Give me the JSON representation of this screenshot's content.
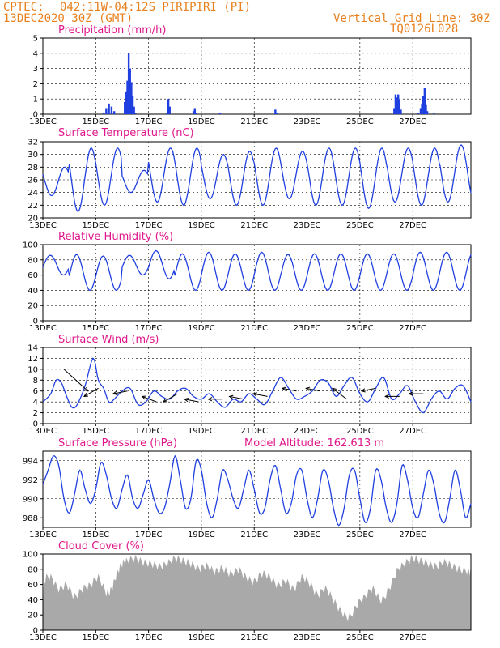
{
  "header": {
    "source": "CPTEC:",
    "location": "042:11W-04:12S  PIRIPIRI (PI)",
    "datetime": "13DEC2020 30Z (GMT)",
    "grid_note": "Vertical Grid Line: 30Z",
    "code": "TQ0126L028"
  },
  "colors": {
    "header": "#e8801e",
    "title": "#e0178a",
    "series": "#1f3fe0",
    "cloud": "#a9a9a9"
  },
  "chart_data": [
    {
      "id": "precip",
      "type": "bar",
      "title": "Precipitation (mm/h)",
      "xlabel": "",
      "ylabel": "",
      "ylim": [
        0,
        5
      ],
      "yticks": [
        0,
        1,
        2,
        3,
        4,
        5
      ],
      "grid": true,
      "x_ticks": [
        "13DEC",
        "15DEC",
        "17DEC",
        "19DEC",
        "21DEC",
        "23DEC",
        "25DEC",
        "27DEC"
      ],
      "points": [
        [
          2.3,
          0.1
        ],
        [
          2.4,
          0.4
        ],
        [
          2.5,
          0.7
        ],
        [
          2.6,
          0.5
        ],
        [
          2.7,
          0.2
        ],
        [
          3.1,
          0.8
        ],
        [
          3.15,
          1.5
        ],
        [
          3.2,
          2.2
        ],
        [
          3.25,
          4.0
        ],
        [
          3.3,
          3.0
        ],
        [
          3.35,
          2.1
        ],
        [
          3.4,
          1.2
        ],
        [
          3.45,
          0.5
        ],
        [
          3.5,
          0.1
        ],
        [
          4.7,
          0.1
        ],
        [
          4.75,
          1.0
        ],
        [
          4.8,
          0.5
        ],
        [
          5.7,
          0.2
        ],
        [
          5.75,
          0.4
        ],
        [
          5.8,
          0.1
        ],
        [
          6.7,
          0.1
        ],
        [
          8.8,
          0.3
        ],
        [
          8.85,
          0.1
        ],
        [
          13.3,
          0.4
        ],
        [
          13.35,
          1.3
        ],
        [
          13.4,
          1.1
        ],
        [
          13.45,
          1.3
        ],
        [
          13.5,
          0.9
        ],
        [
          13.55,
          0.3
        ],
        [
          14.2,
          0.1
        ],
        [
          14.3,
          0.4
        ],
        [
          14.35,
          0.7
        ],
        [
          14.4,
          1.2
        ],
        [
          14.45,
          1.7
        ],
        [
          14.5,
          0.6
        ],
        [
          14.55,
          0.2
        ],
        [
          14.8,
          0.1
        ]
      ]
    },
    {
      "id": "temp",
      "type": "line",
      "title": "Surface Temperature (nC)",
      "xlabel": "",
      "ylabel": "",
      "ylim": [
        20,
        32
      ],
      "yticks": [
        20,
        22,
        24,
        26,
        28,
        30,
        32
      ],
      "grid": true,
      "x_ticks": [
        "13DEC",
        "15DEC",
        "17DEC",
        "19DEC",
        "21DEC",
        "23DEC",
        "25DEC",
        "27DEC"
      ],
      "min_phase": 0.33,
      "daily": [
        [
          23.5,
          28.0
        ],
        [
          21.0,
          31.0
        ],
        [
          22.0,
          31.0
        ],
        [
          24.0,
          27.5
        ],
        [
          22.5,
          31.0
        ],
        [
          22.0,
          31.0
        ],
        [
          23.0,
          30.0
        ],
        [
          22.0,
          30.5
        ],
        [
          22.0,
          31.0
        ],
        [
          23.0,
          30.5
        ],
        [
          22.0,
          31.0
        ],
        [
          22.0,
          31.0
        ],
        [
          21.5,
          31.0
        ],
        [
          22.5,
          31.0
        ],
        [
          22.0,
          31.0
        ],
        [
          22.5,
          31.5
        ]
      ]
    },
    {
      "id": "rh",
      "type": "line",
      "title": "Relative Humidity (%)",
      "xlabel": "",
      "ylabel": "",
      "ylim": [
        0,
        100
      ],
      "yticks": [
        0,
        20,
        40,
        60,
        80,
        100
      ],
      "grid": true,
      "x_ticks": [
        "13DEC",
        "15DEC",
        "17DEC",
        "19DEC",
        "21DEC",
        "23DEC",
        "25DEC",
        "27DEC"
      ],
      "min_phase": 0.78,
      "daily": [
        [
          60.0,
          86.0
        ],
        [
          40.0,
          87.0
        ],
        [
          40.0,
          85.0
        ],
        [
          60.0,
          86.0
        ],
        [
          55.0,
          92.0
        ],
        [
          40.0,
          88.0
        ],
        [
          40.0,
          90.0
        ],
        [
          40.0,
          88.0
        ],
        [
          40.0,
          90.0
        ],
        [
          40.0,
          87.0
        ],
        [
          40.0,
          88.0
        ],
        [
          40.0,
          88.0
        ],
        [
          40.0,
          88.0
        ],
        [
          40.0,
          88.0
        ],
        [
          40.0,
          90.0
        ],
        [
          40.0,
          90.0
        ]
      ]
    },
    {
      "id": "wind",
      "type": "line",
      "title": "Surface Wind (m/s)",
      "xlabel": "",
      "ylabel": "",
      "ylim": [
        0,
        14
      ],
      "yticks": [
        0,
        2,
        4,
        6,
        8,
        10,
        12,
        14
      ],
      "grid": true,
      "x_ticks": [
        "13DEC",
        "15DEC",
        "17DEC",
        "19DEC",
        "21DEC",
        "23DEC",
        "25DEC",
        "27DEC"
      ],
      "speed": [
        [
          0,
          4.0
        ],
        [
          0.3,
          5.5
        ],
        [
          0.5,
          8.0
        ],
        [
          0.7,
          7.5
        ],
        [
          0.9,
          5.0
        ],
        [
          1.1,
          3.0
        ],
        [
          1.3,
          3.5
        ],
        [
          1.6,
          7.0
        ],
        [
          1.9,
          12.0
        ],
        [
          2.1,
          8.0
        ],
        [
          2.3,
          6.5
        ],
        [
          2.5,
          4.0
        ],
        [
          2.7,
          4.5
        ],
        [
          3.0,
          6.0
        ],
        [
          3.3,
          6.5
        ],
        [
          3.6,
          3.5
        ],
        [
          3.9,
          4.0
        ],
        [
          4.2,
          6.0
        ],
        [
          4.5,
          5.0
        ],
        [
          4.8,
          4.5
        ],
        [
          5.1,
          6.0
        ],
        [
          5.4,
          6.5
        ],
        [
          5.7,
          5.0
        ],
        [
          6.0,
          4.5
        ],
        [
          6.3,
          5.5
        ],
        [
          6.6,
          4.0
        ],
        [
          6.9,
          3.0
        ],
        [
          7.2,
          4.5
        ],
        [
          7.5,
          4.0
        ],
        [
          7.8,
          5.5
        ],
        [
          8.1,
          4.5
        ],
        [
          8.4,
          3.5
        ],
        [
          8.7,
          6.0
        ],
        [
          9.0,
          8.5
        ],
        [
          9.3,
          6.5
        ],
        [
          9.6,
          4.5
        ],
        [
          9.9,
          5.0
        ],
        [
          10.2,
          6.0
        ],
        [
          10.5,
          8.0
        ],
        [
          10.8,
          7.5
        ],
        [
          11.1,
          5.0
        ],
        [
          11.4,
          7.0
        ],
        [
          11.7,
          8.5
        ],
        [
          12.0,
          5.5
        ],
        [
          12.3,
          4.0
        ],
        [
          12.6,
          6.5
        ],
        [
          12.9,
          8.5
        ],
        [
          13.2,
          4.5
        ],
        [
          13.5,
          5.5
        ],
        [
          13.8,
          7.0
        ],
        [
          14.1,
          4.0
        ],
        [
          14.4,
          2.0
        ],
        [
          14.7,
          4.5
        ],
        [
          15.0,
          6.0
        ],
        [
          15.3,
          4.5
        ],
        [
          15.6,
          6.5
        ],
        [
          15.9,
          7.0
        ],
        [
          16.2,
          4.0
        ]
      ],
      "arrows": [
        [
          0.8,
          10.0,
          6.0
        ],
        [
          2.1,
          6.5,
          5.0
        ],
        [
          3.2,
          6.0,
          5.5
        ],
        [
          4.3,
          4.0,
          5.0
        ],
        [
          5.1,
          5.5,
          4.0
        ],
        [
          5.9,
          4.0,
          4.5
        ],
        [
          6.8,
          4.5,
          4.5
        ],
        [
          7.6,
          4.5,
          5.0
        ],
        [
          8.5,
          5.0,
          5.5
        ],
        [
          9.6,
          6.0,
          6.5
        ],
        [
          10.5,
          6.0,
          6.5
        ],
        [
          11.5,
          4.5,
          6.5
        ],
        [
          12.6,
          6.5,
          6.0
        ],
        [
          13.5,
          5.0,
          5.0
        ],
        [
          14.4,
          5.5,
          5.5
        ]
      ]
    },
    {
      "id": "pres",
      "type": "line",
      "title": "Surface Pressure (hPa)",
      "annotation": "Model Altitude: 162.613  m",
      "xlabel": "",
      "ylabel": "",
      "ylim": [
        987,
        995
      ],
      "yticks": [
        988,
        990,
        992,
        994
      ],
      "grid": true,
      "x_ticks": [
        "13DEC",
        "15DEC",
        "17DEC",
        "19DEC",
        "21DEC",
        "23DEC",
        "25DEC",
        "27DEC"
      ],
      "pressure": [
        [
          0,
          991.5
        ],
        [
          0.2,
          993.0
        ],
        [
          0.4,
          994.5
        ],
        [
          0.6,
          993.5
        ],
        [
          0.8,
          990.0
        ],
        [
          1.0,
          988.5
        ],
        [
          1.2,
          990.5
        ],
        [
          1.4,
          993.0
        ],
        [
          1.6,
          991.0
        ],
        [
          1.8,
          989.5
        ],
        [
          2.0,
          991.0
        ],
        [
          2.2,
          993.8
        ],
        [
          2.4,
          992.5
        ],
        [
          2.6,
          990.0
        ],
        [
          2.8,
          989.0
        ],
        [
          3.0,
          991.0
        ],
        [
          3.2,
          992.5
        ],
        [
          3.4,
          990.0
        ],
        [
          3.6,
          989.0
        ],
        [
          3.8,
          990.5
        ],
        [
          4.0,
          992.0
        ],
        [
          4.2,
          990.0
        ],
        [
          4.4,
          988.5
        ],
        [
          4.6,
          989.0
        ],
        [
          4.8,
          991.5
        ],
        [
          5.0,
          994.5
        ],
        [
          5.2,
          992.0
        ],
        [
          5.4,
          989.0
        ],
        [
          5.6,
          990.0
        ],
        [
          5.8,
          994.0
        ],
        [
          6.0,
          993.0
        ],
        [
          6.2,
          989.5
        ],
        [
          6.4,
          988.0
        ],
        [
          6.6,
          990.0
        ],
        [
          6.8,
          993.0
        ],
        [
          7.0,
          992.0
        ],
        [
          7.2,
          990.0
        ],
        [
          7.4,
          989.0
        ],
        [
          7.6,
          991.0
        ],
        [
          7.8,
          993.0
        ],
        [
          8.0,
          991.0
        ],
        [
          8.2,
          988.5
        ],
        [
          8.4,
          989.0
        ],
        [
          8.6,
          992.0
        ],
        [
          8.8,
          993.5
        ],
        [
          9.0,
          991.0
        ],
        [
          9.2,
          988.5
        ],
        [
          9.4,
          989.5
        ],
        [
          9.6,
          992.5
        ],
        [
          9.8,
          993.0
        ],
        [
          10.0,
          990.0
        ],
        [
          10.2,
          988.0
        ],
        [
          10.4,
          990.0
        ],
        [
          10.6,
          993.0
        ],
        [
          10.8,
          992.0
        ],
        [
          11.0,
          989.0
        ],
        [
          11.2,
          987.2
        ],
        [
          11.4,
          989.0
        ],
        [
          11.6,
          992.5
        ],
        [
          11.8,
          993.0
        ],
        [
          12.0,
          990.0
        ],
        [
          12.2,
          987.5
        ],
        [
          12.4,
          989.0
        ],
        [
          12.6,
          993.0
        ],
        [
          12.8,
          992.0
        ],
        [
          13.0,
          989.0
        ],
        [
          13.2,
          987.5
        ],
        [
          13.4,
          989.5
        ],
        [
          13.6,
          993.5
        ],
        [
          13.8,
          992.0
        ],
        [
          14.0,
          989.0
        ],
        [
          14.2,
          988.0
        ],
        [
          14.4,
          990.5
        ],
        [
          14.6,
          993.0
        ],
        [
          14.8,
          991.5
        ],
        [
          15.0,
          988.5
        ],
        [
          15.2,
          987.5
        ],
        [
          15.4,
          990.0
        ],
        [
          15.6,
          993.0
        ],
        [
          15.8,
          991.0
        ],
        [
          16.0,
          988.0
        ],
        [
          16.2,
          989.5
        ]
      ]
    },
    {
      "id": "cloud",
      "type": "area",
      "title": "Cloud Cover (%)",
      "xlabel": "",
      "ylabel": "",
      "ylim": [
        0,
        100
      ],
      "yticks": [
        0,
        20,
        40,
        60,
        80,
        100
      ],
      "grid": false,
      "x_ticks": [
        "13DEC",
        "15DEC",
        "17DEC",
        "19DEC",
        "21DEC",
        "23DEC",
        "25DEC",
        "27DEC"
      ],
      "cover": [
        [
          0,
          0
        ],
        [
          0.05,
          62
        ],
        [
          0.3,
          70
        ],
        [
          0.6,
          55
        ],
        [
          0.9,
          60
        ],
        [
          1.2,
          45
        ],
        [
          1.5,
          55
        ],
        [
          1.8,
          60
        ],
        [
          2.1,
          70
        ],
        [
          2.4,
          50
        ],
        [
          2.6,
          55
        ],
        [
          2.8,
          75
        ],
        [
          3.0,
          88
        ],
        [
          3.2,
          92
        ],
        [
          3.5,
          95
        ],
        [
          3.8,
          90
        ],
        [
          4.1,
          88
        ],
        [
          4.4,
          85
        ],
        [
          4.7,
          88
        ],
        [
          5.0,
          95
        ],
        [
          5.3,
          92
        ],
        [
          5.6,
          88
        ],
        [
          5.9,
          82
        ],
        [
          6.2,
          85
        ],
        [
          6.5,
          78
        ],
        [
          6.8,
          82
        ],
        [
          7.1,
          75
        ],
        [
          7.4,
          80
        ],
        [
          7.7,
          70
        ],
        [
          8.0,
          65
        ],
        [
          8.3,
          75
        ],
        [
          8.6,
          70
        ],
        [
          8.9,
          60
        ],
        [
          9.2,
          65
        ],
        [
          9.5,
          55
        ],
        [
          9.8,
          70
        ],
        [
          10.1,
          62
        ],
        [
          10.4,
          48
        ],
        [
          10.7,
          55
        ],
        [
          11.0,
          40
        ],
        [
          11.3,
          25
        ],
        [
          11.6,
          18
        ],
        [
          11.9,
          35
        ],
        [
          12.2,
          45
        ],
        [
          12.5,
          55
        ],
        [
          12.8,
          40
        ],
        [
          13.1,
          55
        ],
        [
          13.4,
          78
        ],
        [
          13.7,
          88
        ],
        [
          14.0,
          95
        ],
        [
          14.3,
          92
        ],
        [
          14.6,
          88
        ],
        [
          14.9,
          85
        ],
        [
          15.2,
          90
        ],
        [
          15.5,
          85
        ],
        [
          15.8,
          80
        ],
        [
          16.1,
          78
        ],
        [
          16.2,
          75
        ]
      ]
    }
  ]
}
